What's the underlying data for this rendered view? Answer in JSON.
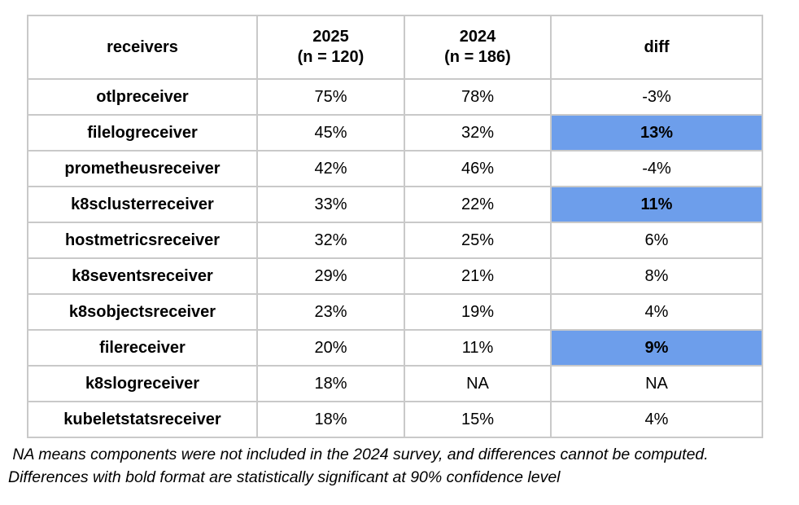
{
  "table": {
    "headers": {
      "receivers": "receivers",
      "y2025_line1": "2025",
      "y2025_line2": "(n = 120)",
      "y2024_line1": "2024",
      "y2024_line2": "(n = 186)",
      "diff": "diff"
    },
    "rows": [
      {
        "receiver": "otlpreceiver",
        "y2025": "75%",
        "y2024": "78%",
        "diff": "-3%",
        "significant": false
      },
      {
        "receiver": "filelogreceiver",
        "y2025": "45%",
        "y2024": "32%",
        "diff": "13%",
        "significant": true
      },
      {
        "receiver": "prometheusreceiver",
        "y2025": "42%",
        "y2024": "46%",
        "diff": "-4%",
        "significant": false
      },
      {
        "receiver": "k8sclusterreceiver",
        "y2025": "33%",
        "y2024": "22%",
        "diff": "11%",
        "significant": true
      },
      {
        "receiver": "hostmetricsreceiver",
        "y2025": "32%",
        "y2024": "25%",
        "diff": "6%",
        "significant": false
      },
      {
        "receiver": "k8seventsreceiver",
        "y2025": "29%",
        "y2024": "21%",
        "diff": "8%",
        "significant": false
      },
      {
        "receiver": "k8sobjectsreceiver",
        "y2025": "23%",
        "y2024": "19%",
        "diff": "4%",
        "significant": false
      },
      {
        "receiver": "filereceiver",
        "y2025": "20%",
        "y2024": "11%",
        "diff": "9%",
        "significant": true
      },
      {
        "receiver": "k8slogreceiver",
        "y2025": "18%",
        "y2024": "NA",
        "diff": "NA",
        "significant": false
      },
      {
        "receiver": "kubeletstatsreceiver",
        "y2025": "18%",
        "y2024": "15%",
        "diff": "4%",
        "significant": false
      }
    ]
  },
  "footnotes": {
    "line1": " NA means components were not included in the 2024 survey, and differences cannot be computed.",
    "line2": "Differences with bold format are statistically significant at 90% confidence level"
  },
  "colors": {
    "highlight_blue": "#6d9eeb",
    "border_gray": "#c9c9c9"
  },
  "chart_data": {
    "type": "table",
    "title": "",
    "columns": [
      "receivers",
      "2025 (n = 120)",
      "2024 (n = 186)",
      "diff"
    ],
    "sample_sizes": {
      "2025": 120,
      "2024": 186
    },
    "categories": [
      "otlpreceiver",
      "filelogreceiver",
      "prometheusreceiver",
      "k8sclusterreceiver",
      "hostmetricsreceiver",
      "k8seventsreceiver",
      "k8sobjectsreceiver",
      "filereceiver",
      "k8slogreceiver",
      "kubeletstatsreceiver"
    ],
    "series": [
      {
        "name": "2025",
        "values": [
          75,
          45,
          42,
          33,
          32,
          29,
          23,
          20,
          18,
          18
        ]
      },
      {
        "name": "2024",
        "values": [
          78,
          32,
          46,
          22,
          25,
          21,
          19,
          11,
          null,
          15
        ]
      },
      {
        "name": "diff",
        "values": [
          -3,
          13,
          -4,
          11,
          6,
          8,
          4,
          9,
          null,
          4
        ]
      }
    ],
    "units": "percent",
    "highlighted_significant_rows": [
      "filelogreceiver",
      "k8sclusterreceiver",
      "filereceiver"
    ],
    "annotations": [
      "NA means components were not included in the 2024 survey, and differences cannot be computed.",
      "Differences with bold format are statistically significant at 90% confidence level"
    ]
  }
}
